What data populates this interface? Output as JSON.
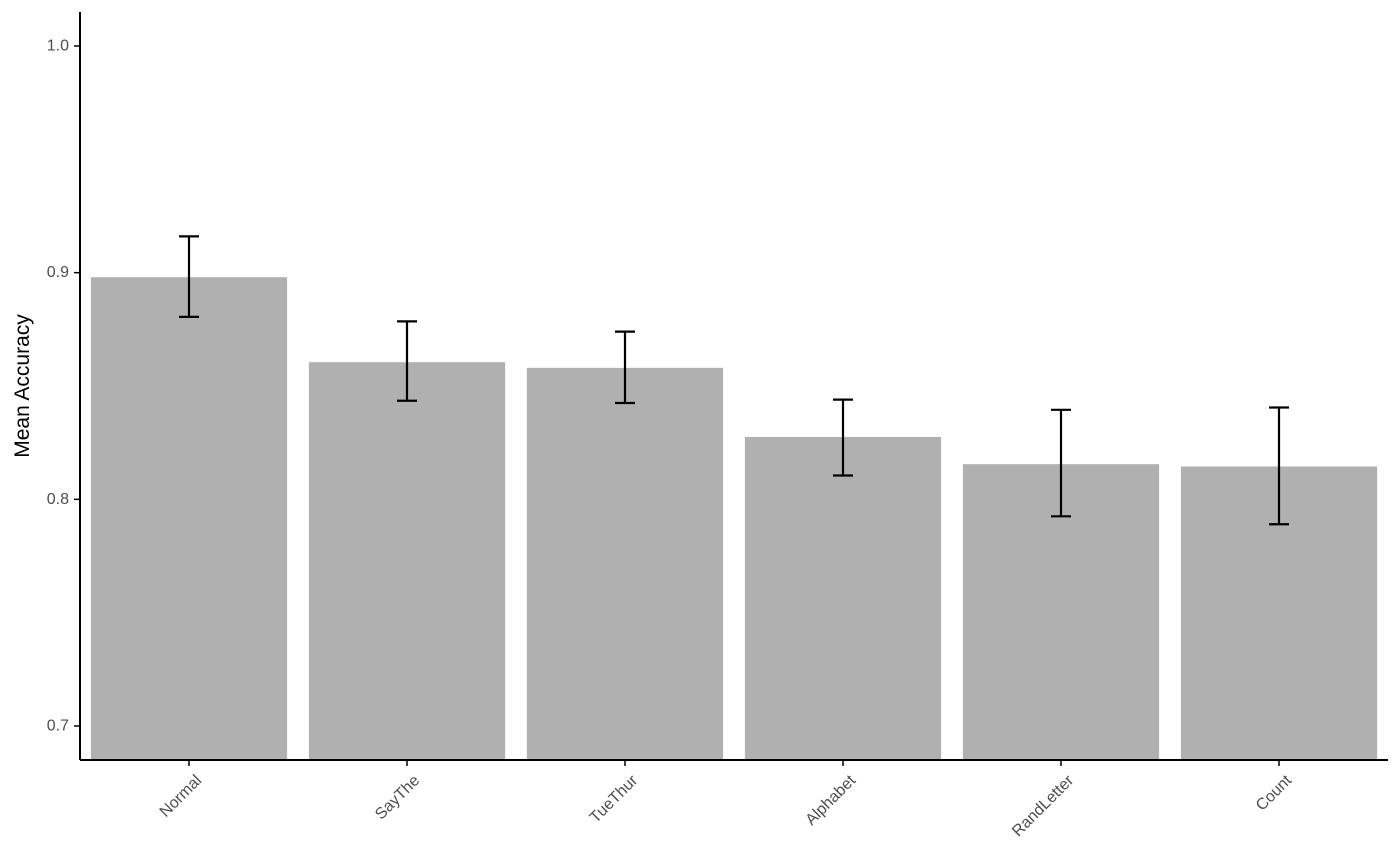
{
  "chart_data": {
    "type": "bar",
    "title": "",
    "xlabel": "",
    "ylabel": "Mean Accuracy",
    "categories": [
      "Normal",
      "SayThe",
      "TueThur",
      "Alphabet",
      "RandLetter",
      "Count"
    ],
    "values": [
      0.898,
      0.8605,
      0.858,
      0.8275,
      0.8155,
      0.8145
    ],
    "error_low": [
      0.8805,
      0.8435,
      0.8425,
      0.8105,
      0.7925,
      0.789
    ],
    "error_high": [
      0.916,
      0.8785,
      0.874,
      0.844,
      0.8395,
      0.8405
    ],
    "ylim": [
      0.685,
      1.015
    ],
    "yticks": [
      0.7,
      0.8,
      0.9,
      1.0
    ],
    "ytick_labels": [
      "0.7",
      "0.8",
      "0.9",
      "1.0"
    ],
    "grid": false,
    "legend": "none",
    "colors": {
      "bar": "#b0b0b0",
      "error_bar": "#000000",
      "axis": "#000000",
      "tick_label": "#4d4d4d"
    }
  }
}
